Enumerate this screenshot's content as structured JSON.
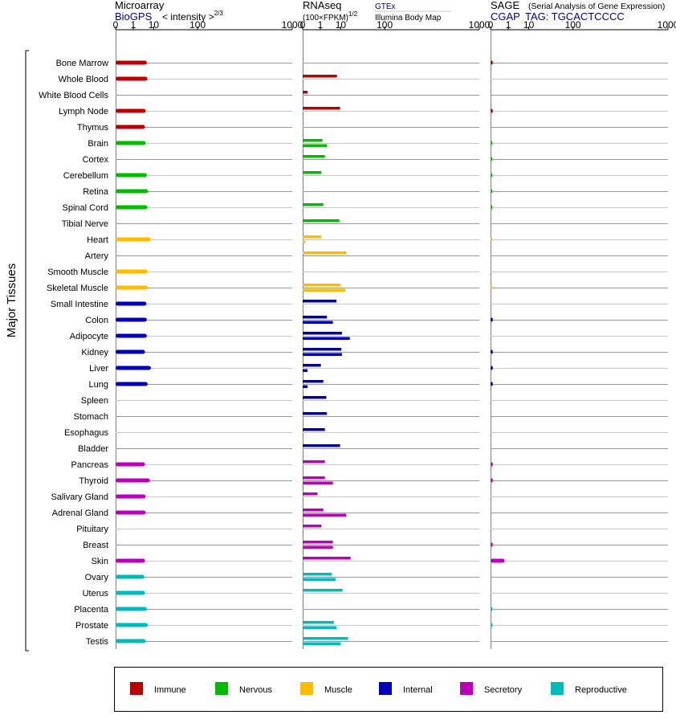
{
  "headers": {
    "microarray": {
      "title": "Microarray",
      "source": "BioGPS",
      "unit_prefix": "< intensity >",
      "unit_exponent": "2/3"
    },
    "rnaseq": {
      "title": "RNAseq",
      "unit_prefix": "(100×FPKM)",
      "unit_exponent": "1/2",
      "source_a": "GTEx",
      "source_b": "Illumina Body Map"
    },
    "sage": {
      "title": "SAGE",
      "subtitle": "(Serial Analysis of Gene Expression)",
      "source": "CGAP",
      "tag": "TAG: TGCACTCCCC"
    }
  },
  "colors": {
    "Immune": "#bb0000",
    "Nervous": "#00bb00",
    "Muscle": "#ffbb00",
    "Internal": "#0000bb",
    "Secretory": "#bb00bb",
    "Reproductive": "#00bbbb",
    "dark_label": "#000080"
  },
  "y_axis_label": "Major Tissues",
  "legend": [
    "Immune",
    "Nervous",
    "Muscle",
    "Internal",
    "Secretory",
    "Reproductive"
  ],
  "chart_data": {
    "type": "bar",
    "orientation": "horizontal",
    "scale": "power",
    "ticks": [
      "0",
      "1",
      "10",
      "100",
      "1000"
    ],
    "tick_values": [
      0,
      1,
      10,
      100,
      1000
    ],
    "xlim": [
      0,
      1000
    ],
    "categories": [
      "Bone Marrow",
      "Whole Blood",
      "White Blood Cells",
      "Lymph Node",
      "Thymus",
      "Brain",
      "Cortex",
      "Cerebellum",
      "Retina",
      "Spinal Cord",
      "Tibial Nerve",
      "Heart",
      "Artery",
      "Smooth Muscle",
      "Skeletal Muscle",
      "Small Intestine",
      "Colon",
      "Adipocyte",
      "Kidney",
      "Liver",
      "Lung",
      "Spleen",
      "Stomach",
      "Esophagus",
      "Bladder",
      "Pancreas",
      "Thyroid",
      "Salivary Gland",
      "Adrenal Gland",
      "Pituitary",
      "Breast",
      "Skin",
      "Ovary",
      "Uterus",
      "Placenta",
      "Prostate",
      "Testis"
    ],
    "groups": [
      "Immune",
      "Immune",
      "Immune",
      "Immune",
      "Immune",
      "Nervous",
      "Nervous",
      "Nervous",
      "Nervous",
      "Nervous",
      "Nervous",
      "Muscle",
      "Muscle",
      "Muscle",
      "Muscle",
      "Internal",
      "Internal",
      "Internal",
      "Internal",
      "Internal",
      "Internal",
      "Internal",
      "Internal",
      "Internal",
      "Internal",
      "Secretory",
      "Secretory",
      "Secretory",
      "Secretory",
      "Secretory",
      "Secretory",
      "Secretory",
      "Reproductive",
      "Reproductive",
      "Reproductive",
      "Reproductive",
      "Reproductive"
    ],
    "series": [
      {
        "name": "Microarray",
        "values": [
          5.5,
          5.8,
          null,
          4.9,
          4.6,
          4.9,
          null,
          5.5,
          6.2,
          5.8,
          null,
          7.8,
          null,
          5.8,
          6.0,
          5.3,
          5.5,
          5.5,
          4.6,
          8.0,
          6.0,
          null,
          null,
          null,
          null,
          4.6,
          7.3,
          4.9,
          4.9,
          null,
          null,
          4.6,
          4.3,
          4.6,
          5.5,
          6.0,
          4.9
        ]
      },
      {
        "name": "GTEx",
        "values": [
          null,
          7.3,
          0.02,
          9.5,
          null,
          1.4,
          2.0,
          1.2,
          null,
          1.6,
          9.0,
          1.2,
          15.0,
          null,
          10.0,
          7.0,
          2.6,
          11.0,
          10.5,
          1.1,
          1.6,
          2.4,
          2.6,
          2.0,
          9.5,
          2.0,
          2.0,
          0.6,
          1.6,
          1.2,
          5.0,
          20.0,
          4.5,
          11.5,
          null,
          5.5,
          17.0
        ]
      },
      {
        "name": "Illumina Body Map",
        "values": [
          null,
          null,
          null,
          null,
          null,
          2.6,
          null,
          null,
          null,
          null,
          null,
          0.002,
          null,
          null,
          14.0,
          null,
          5.0,
          19.0,
          11.0,
          0.02,
          0.02,
          null,
          null,
          null,
          null,
          null,
          5.0,
          null,
          15.0,
          null,
          5.0,
          null,
          6.5,
          null,
          null,
          7.0,
          10.0
        ]
      },
      {
        "name": "SAGE",
        "values": [
          0.002,
          null,
          null,
          0.002,
          null,
          0.001,
          0.001,
          0.001,
          0.001,
          0.001,
          null,
          0.0005,
          null,
          null,
          0.0005,
          null,
          0.002,
          null,
          0.002,
          0.002,
          0.002,
          null,
          null,
          null,
          null,
          0.002,
          0.002,
          null,
          null,
          null,
          0.002,
          0.5,
          null,
          null,
          0.001,
          0.001,
          null
        ]
      }
    ]
  }
}
